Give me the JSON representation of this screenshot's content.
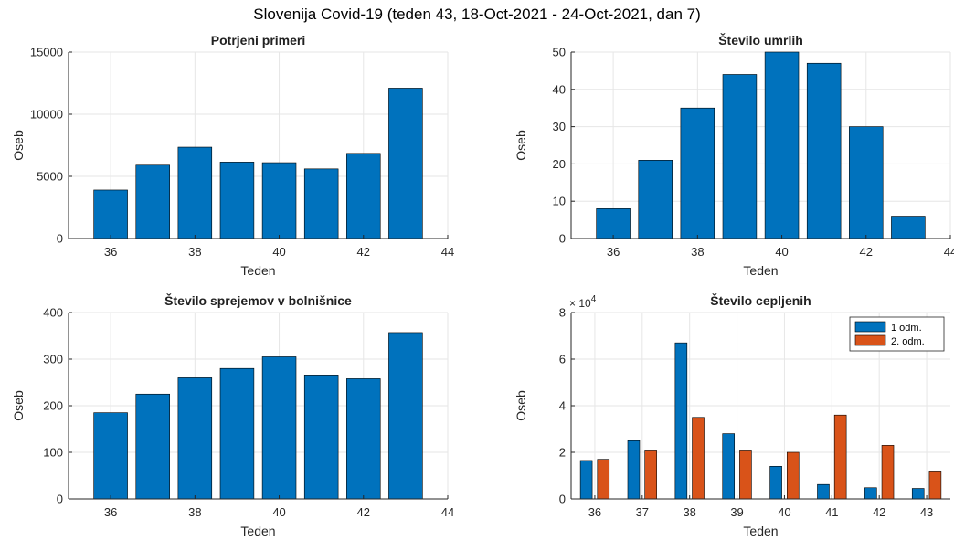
{
  "figure": {
    "title": "Slovenija Covid-19 (teden 43, 18-Oct-2021 - 24-Oct-2021, dan 7)"
  },
  "colors": {
    "bar_blue": "#0072BD",
    "bar_orange": "#D95319",
    "grid": "#e6e6e6",
    "axis": "#262626"
  },
  "chart_data": [
    {
      "type": "bar",
      "title": "Potrjeni primeri",
      "xlabel": "Teden",
      "ylabel": "Oseb",
      "x": [
        36,
        37,
        38,
        39,
        40,
        41,
        42,
        43
      ],
      "values": [
        3900,
        5900,
        7350,
        6150,
        6100,
        5600,
        6850,
        12100
      ],
      "xlim": [
        35,
        44
      ],
      "ylim": [
        0,
        15000
      ],
      "xticks": [
        36,
        38,
        40,
        42,
        44
      ],
      "yticks": [
        0,
        5000,
        10000,
        15000
      ],
      "grid": true
    },
    {
      "type": "bar",
      "title": "Število umrlih",
      "xlabel": "Teden",
      "ylabel": "Oseb",
      "x": [
        36,
        37,
        38,
        39,
        40,
        41,
        42,
        43
      ],
      "values": [
        8,
        21,
        35,
        44,
        50,
        47,
        30,
        6
      ],
      "xlim": [
        35,
        44
      ],
      "ylim": [
        0,
        50
      ],
      "xticks": [
        36,
        38,
        40,
        42,
        44
      ],
      "yticks": [
        0,
        10,
        20,
        30,
        40,
        50
      ],
      "grid": true
    },
    {
      "type": "bar",
      "title": "Število sprejemov v bolnišnice",
      "xlabel": "Teden",
      "ylabel": "Oseb",
      "x": [
        36,
        37,
        38,
        39,
        40,
        41,
        42,
        43
      ],
      "values": [
        185,
        225,
        260,
        280,
        305,
        266,
        258,
        357
      ],
      "xlim": [
        35,
        44
      ],
      "ylim": [
        0,
        400
      ],
      "xticks": [
        36,
        38,
        40,
        42,
        44
      ],
      "yticks": [
        0,
        100,
        200,
        300,
        400
      ],
      "grid": true
    },
    {
      "type": "bar",
      "title": "Število cepljenih",
      "xlabel": "Teden",
      "ylabel": "Oseb",
      "y_exponent_base": "× 10",
      "y_exponent_power": "4",
      "categories": [
        "36",
        "37",
        "38",
        "39",
        "40",
        "41",
        "42",
        "43"
      ],
      "series": [
        {
          "name": "1 odm.",
          "values": [
            16500,
            25000,
            67000,
            28000,
            14000,
            6200,
            4800,
            4500
          ]
        },
        {
          "name": "2. odm.",
          "values": [
            17000,
            21000,
            35000,
            21000,
            20000,
            36000,
            23000,
            12000
          ]
        }
      ],
      "ylim": [
        0,
        80000
      ],
      "yticks": [
        0,
        20000,
        40000,
        60000,
        80000
      ],
      "ytick_labels": [
        "0",
        "2",
        "4",
        "6",
        "8"
      ],
      "legend_position": "top-right",
      "grid": true
    }
  ]
}
